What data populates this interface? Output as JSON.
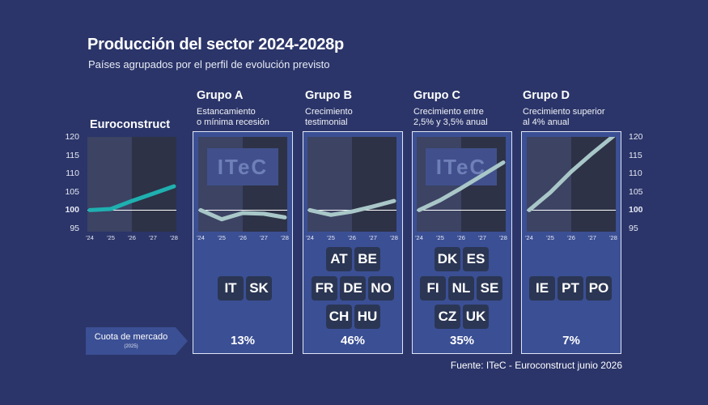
{
  "title": "Producción del sector 2024-2028p",
  "subtitle": "Países agrupados por el perfil de evolución previsto",
  "euroconstruct_label": "Euroconstruct",
  "market_share_label": "Cuota de mercado",
  "market_share_sub": "(2025)",
  "source": "Fuente: ITeC - Euroconstruct junio 2026",
  "watermark": "ITeC",
  "y_ticks": [
    "120",
    "115",
    "110",
    "105",
    "100",
    "95"
  ],
  "x_ticks": [
    "'24",
    "'25",
    "'26",
    "'27",
    "'28"
  ],
  "colors": {
    "background": "#2b3569",
    "group_box": "#3b4f94",
    "euroconstruct_line": "#1fb0b0",
    "group_line": "#a9c7c8"
  },
  "groups": [
    {
      "name": "Grupo A",
      "desc1": "Estancamiento",
      "desc2": "o mínima recesión",
      "share": "13%",
      "countries": [
        "IT",
        "SK"
      ]
    },
    {
      "name": "Grupo B",
      "desc1": "Crecimiento",
      "desc2": "testimonial",
      "share": "46%",
      "countries": [
        "AT",
        "BE",
        "FR",
        "DE",
        "NO",
        "CH",
        "HU"
      ]
    },
    {
      "name": "Grupo C",
      "desc1": "Crecimiento entre",
      "desc2": "2,5% y 3,5% anual",
      "share": "35%",
      "countries": [
        "DK",
        "ES",
        "FI",
        "NL",
        "SE",
        "CZ",
        "UK"
      ]
    },
    {
      "name": "Grupo D",
      "desc1": "Crecimiento superior",
      "desc2": "al 4% anual",
      "share": "7%",
      "countries": [
        "IE",
        "PT",
        "PO"
      ]
    }
  ],
  "chart_data": [
    {
      "type": "line",
      "name": "Euroconstruct",
      "x": [
        "'24",
        "'25",
        "'26",
        "'27",
        "'28"
      ],
      "values": [
        100,
        100.3,
        102.5,
        104.5,
        106.5
      ],
      "ylim": [
        95,
        120
      ]
    },
    {
      "type": "line",
      "name": "Grupo A",
      "x": [
        "'24",
        "'25",
        "'26",
        "'27",
        "'28"
      ],
      "values": [
        100,
        97.5,
        99.2,
        99,
        98
      ],
      "ylim": [
        95,
        120
      ]
    },
    {
      "type": "line",
      "name": "Grupo B",
      "x": [
        "'24",
        "'25",
        "'26",
        "'27",
        "'28"
      ],
      "values": [
        100,
        98.7,
        99.6,
        101,
        102.5
      ],
      "ylim": [
        95,
        120
      ]
    },
    {
      "type": "line",
      "name": "Grupo C",
      "x": [
        "'24",
        "'25",
        "'26",
        "'27",
        "'28"
      ],
      "values": [
        100,
        102.7,
        106,
        109.5,
        113
      ],
      "ylim": [
        95,
        120
      ]
    },
    {
      "type": "line",
      "name": "Grupo D",
      "x": [
        "'24",
        "'25",
        "'26",
        "'27",
        "'28"
      ],
      "values": [
        100,
        104.8,
        110.5,
        115.5,
        120.2
      ],
      "ylim": [
        95,
        120
      ]
    }
  ]
}
